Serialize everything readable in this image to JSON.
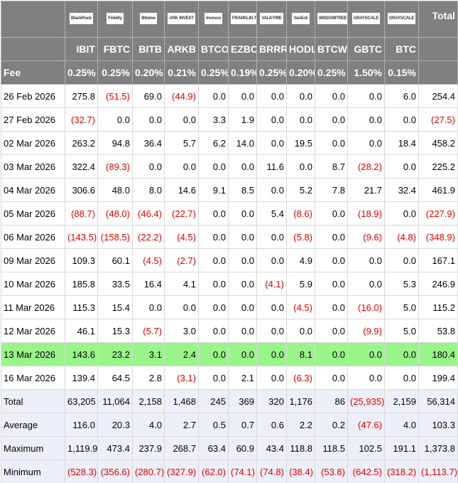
{
  "header": {
    "logos": [
      "BlackRock",
      "Fidelity",
      "Bitwise",
      "ARK INVEST",
      "Invesco",
      "FRANKLIN TEMPLETON",
      "VALKYRIE",
      "VanEck",
      "WISDOMTREE",
      "GRAYSCALE",
      "GRAYSCALE"
    ],
    "tickers": [
      "IBIT",
      "FBTC",
      "BITB",
      "ARKB",
      "BTCO",
      "EZBC",
      "BRRR",
      "HODL",
      "BTCW",
      "GBTC",
      "BTC"
    ],
    "total_label": "Total"
  },
  "fee": {
    "label": "Fee",
    "values": [
      "0.25%",
      "0.25%",
      "0.20%",
      "0.21%",
      "0.25%",
      "0.19%",
      "0.25%",
      "0.20%",
      "0.25%",
      "1.50%",
      "0.15%"
    ]
  },
  "rows": [
    {
      "date": "26 Feb 2026",
      "values": [
        "275.8",
        "(51.5)",
        "69.0",
        "(44.9)",
        "0.0",
        "0.0",
        "0.0",
        "0.0",
        "0.0",
        "0.0",
        "6.0",
        "254.4"
      ]
    },
    {
      "date": "27 Feb 2026",
      "values": [
        "(32.7)",
        "0.0",
        "0.0",
        "0.0",
        "3.3",
        "1.9",
        "0.0",
        "0.0",
        "0.0",
        "0.0",
        "0.0",
        "(27.5)"
      ]
    },
    {
      "date": "02 Mar 2026",
      "values": [
        "263.2",
        "94.8",
        "36.4",
        "5.7",
        "6.2",
        "14.0",
        "0.0",
        "19.5",
        "0.0",
        "0.0",
        "18.4",
        "458.2"
      ]
    },
    {
      "date": "03 Mar 2026",
      "values": [
        "322.4",
        "(89.3)",
        "0.0",
        "0.0",
        "0.0",
        "0.0",
        "11.6",
        "0.0",
        "8.7",
        "(28.2)",
        "0.0",
        "225.2"
      ]
    },
    {
      "date": "04 Mar 2026",
      "values": [
        "306.6",
        "48.0",
        "8.0",
        "14.6",
        "9.1",
        "8.5",
        "0.0",
        "5.2",
        "7.8",
        "21.7",
        "32.4",
        "461.9"
      ]
    },
    {
      "date": "05 Mar 2026",
      "values": [
        "(88.7)",
        "(48.0)",
        "(46.4)",
        "(22.7)",
        "0.0",
        "0.0",
        "5.4",
        "(8.6)",
        "0.0",
        "(18.9)",
        "0.0",
        "(227.9)"
      ]
    },
    {
      "date": "06 Mar 2026",
      "values": [
        "(143.5)",
        "(158.5)",
        "(22.2)",
        "(4.5)",
        "0.0",
        "0.0",
        "0.0",
        "(5.8)",
        "0.0",
        "(9.6)",
        "(4.8)",
        "(348.9)"
      ]
    },
    {
      "date": "09 Mar 2026",
      "values": [
        "109.3",
        "60.1",
        "(4.5)",
        "(2.7)",
        "0.0",
        "0.0",
        "0.0",
        "4.9",
        "0.0",
        "0.0",
        "0.0",
        "167.1"
      ]
    },
    {
      "date": "10 Mar 2026",
      "values": [
        "185.8",
        "33.5",
        "16.4",
        "4.1",
        "0.0",
        "0.0",
        "(4.1)",
        "5.9",
        "0.0",
        "0.0",
        "5.3",
        "246.9"
      ]
    },
    {
      "date": "11 Mar 2026",
      "values": [
        "115.3",
        "15.4",
        "0.0",
        "0.0",
        "0.0",
        "0.0",
        "0.0",
        "(4.5)",
        "0.0",
        "(16.0)",
        "5.0",
        "115.2"
      ]
    },
    {
      "date": "12 Mar 2026",
      "values": [
        "46.1",
        "15.3",
        "(5.7)",
        "3.0",
        "0.0",
        "0.0",
        "0.0",
        "0.0",
        "0.0",
        "(9.9)",
        "5.0",
        "53.8"
      ]
    },
    {
      "date": "13 Mar 2026",
      "values": [
        "143.6",
        "23.2",
        "3.1",
        "2.4",
        "0.0",
        "0.0",
        "0.0",
        "8.1",
        "0.0",
        "0.0",
        "0.0",
        "180.4"
      ]
    },
    {
      "date": "16 Mar 2026",
      "values": [
        "139.4",
        "64.5",
        "2.8",
        "(3.1)",
        "0.0",
        "2.1",
        "0.0",
        "(6.3)",
        "0.0",
        "0.0",
        "0.0",
        "199.4"
      ]
    }
  ],
  "summary": [
    {
      "label": "Total",
      "values": [
        "63,205",
        "11,064",
        "2,158",
        "1,468",
        "245",
        "369",
        "320",
        "1,176",
        "86",
        "(25,935)",
        "2,159",
        "56,314"
      ]
    },
    {
      "label": "Average",
      "values": [
        "116.0",
        "20.3",
        "4.0",
        "2.7",
        "0.5",
        "0.7",
        "0.6",
        "2.2",
        "0.2",
        "(47.6)",
        "4.0",
        "103.3"
      ]
    },
    {
      "label": "Maximum",
      "values": [
        "1,119.9",
        "473.4",
        "237.9",
        "268.7",
        "63.4",
        "60.9",
        "43.4",
        "118.8",
        "118.5",
        "102.5",
        "191.1",
        "1,373.8"
      ]
    },
    {
      "label": "Minimum",
      "values": [
        "(528.3)",
        "(356.6)",
        "(280.7)",
        "(327.9)",
        "(62.0)",
        "(74.1)",
        "(74.8)",
        "(38.4)",
        "(53.8)",
        "(642.5)",
        "(318.2)",
        "(1,113.7)"
      ]
    }
  ]
}
